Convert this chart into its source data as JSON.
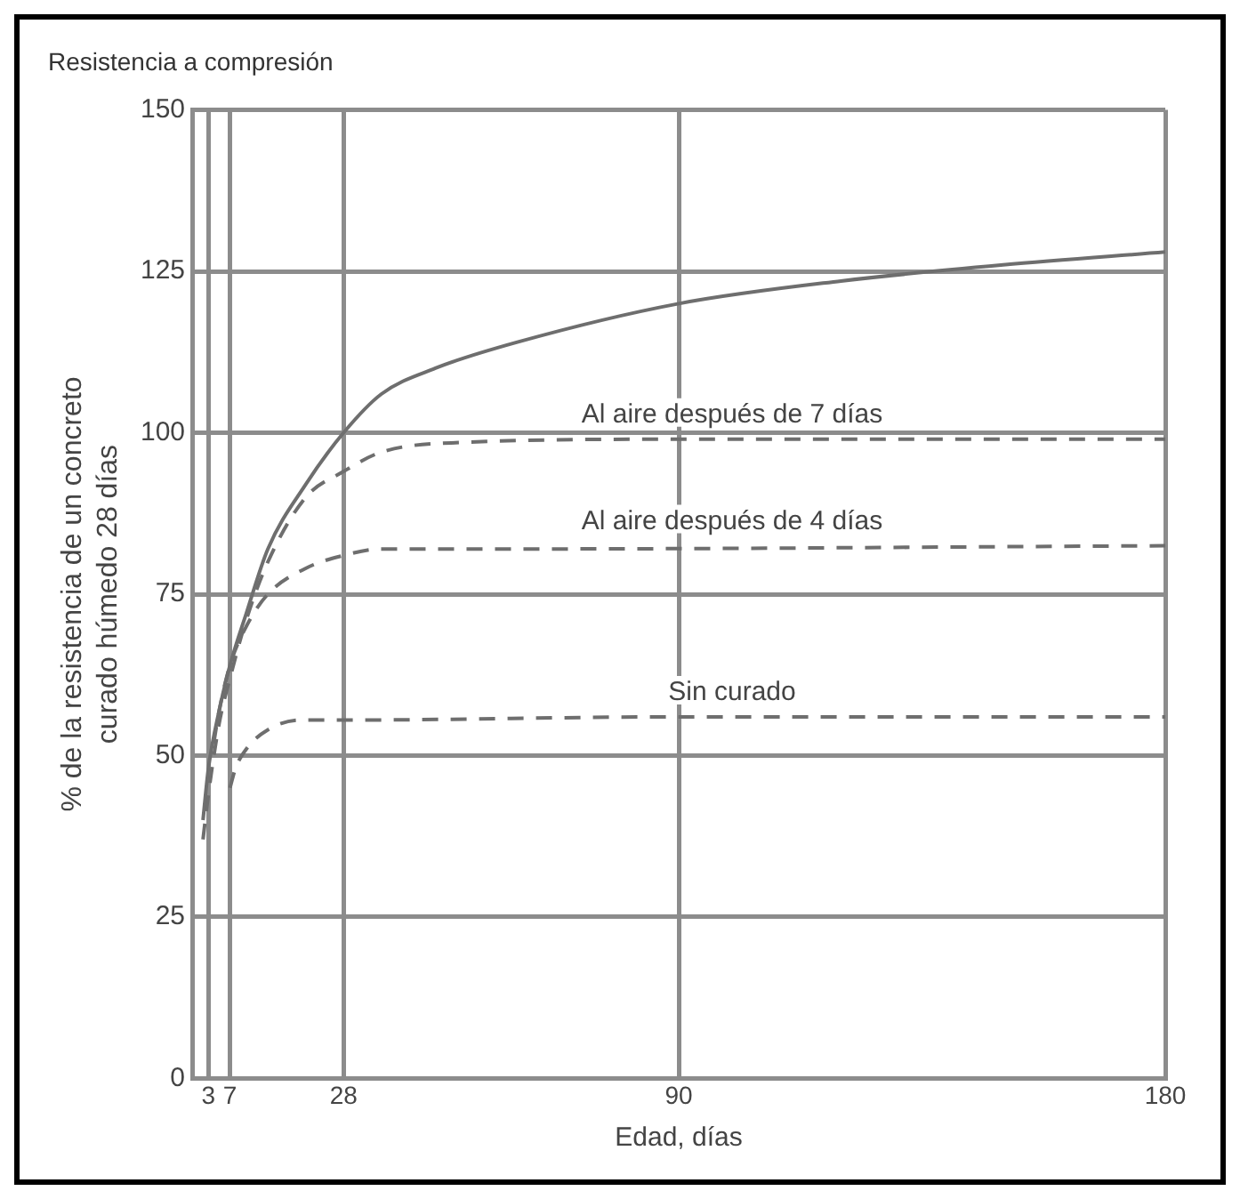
{
  "chart_data": {
    "type": "line",
    "title": "Resistencia a compresión",
    "xlabel": "Edad, días",
    "ylabel": "% de la resistencia de un concreto\ncurado húmedo 28 días",
    "xlim": [
      0,
      180
    ],
    "xticks": [
      3,
      7,
      28,
      90,
      180
    ],
    "ylim": [
      0,
      150
    ],
    "yticks": [
      0,
      25,
      50,
      75,
      100,
      125,
      150
    ],
    "grid": true,
    "legend": false,
    "marker": "none",
    "series": [
      {
        "color": "#6e6e6e",
        "line_style": "solid",
        "x": [
          2,
          3,
          5,
          7,
          10,
          14,
          21,
          28,
          35,
          45,
          60,
          90,
          120,
          150,
          180
        ],
        "values": [
          40,
          48,
          57,
          64,
          72,
          82,
          92,
          100,
          106,
          110,
          114,
          120,
          123.5,
          126,
          128
        ]
      },
      {
        "name": "Al aire después de 7 días",
        "color": "#6e6e6e",
        "line_style": "dashed",
        "x": [
          2,
          3,
          5,
          7,
          10,
          14,
          21,
          28,
          35,
          50,
          90,
          180
        ],
        "values": [
          37,
          44,
          55,
          62,
          71,
          80,
          90,
          94,
          97,
          98.5,
          99,
          99
        ]
      },
      {
        "name": "Al aire después de 4 días",
        "color": "#6e6e6e",
        "line_style": "dashed",
        "x": [
          4,
          5,
          7,
          10,
          14,
          21,
          28,
          35,
          60,
          180
        ],
        "values": [
          52,
          57,
          64,
          70,
          75,
          79,
          81,
          82,
          82,
          82.5
        ]
      },
      {
        "name": "Sin curado",
        "color": "#6e6e6e",
        "line_style": "dashed",
        "x": [
          7,
          8,
          10,
          14,
          20,
          28,
          90,
          180
        ],
        "values": [
          45,
          48,
          51,
          54,
          55.5,
          55.5,
          56,
          56
        ]
      }
    ]
  }
}
